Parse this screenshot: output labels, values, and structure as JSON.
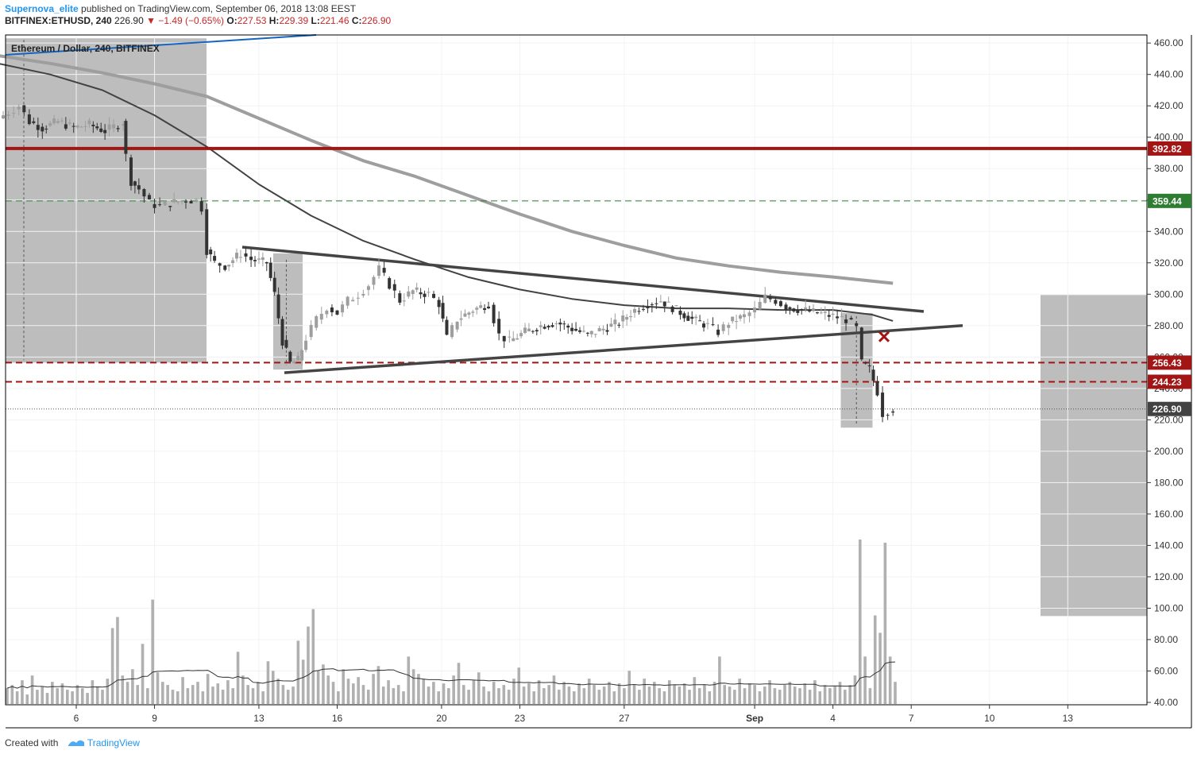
{
  "header": {
    "username": "Supernova_elite",
    "published_text": "published on TradingView.com, September 06, 2018 13:08 EEST",
    "symbol": "BITFINEX:ETHUSD, 240",
    "last": "226.90",
    "change": "▼ −1.49 (−0.65%)",
    "o_label": "O:",
    "o_value": "227.53",
    "h_label": "H:",
    "h_value": "229.39",
    "l_label": "L:",
    "l_value": "221.46",
    "c_label": "C:",
    "c_value": "226.90"
  },
  "footer": {
    "created_with": "Created with",
    "brand": "TradingView"
  },
  "colors": {
    "down_bar": "#333333",
    "up_bar": "#9e9e9e",
    "resistance": "#a31515",
    "support_dash": "#a31515",
    "green": "#2e7d32",
    "box": "#bdbdbd"
  },
  "chart_data": {
    "type": "candlestick",
    "title": "Ethereum / Dollar, 240, BITFINEX",
    "y_ticks": [
      "460.00",
      "440.00",
      "420.00",
      "400.00",
      "380.00",
      "360.00",
      "340.00",
      "320.00",
      "300.00",
      "280.00",
      "260.00",
      "240.00",
      "220.00",
      "200.00",
      "180.00",
      "160.00",
      "140.00",
      "120.00",
      "100.00",
      "80.00",
      "60.00",
      "40.00"
    ],
    "x_ticks": [
      {
        "label": "6",
        "day": 6
      },
      {
        "label": "9",
        "day": 9
      },
      {
        "label": "13",
        "day": 13
      },
      {
        "label": "16",
        "day": 16
      },
      {
        "label": "20",
        "day": 20
      },
      {
        "label": "23",
        "day": 23
      },
      {
        "label": "27",
        "day": 27
      },
      {
        "label": "Sep",
        "day": 32,
        "bold": true
      },
      {
        "label": "4",
        "day": 35
      },
      {
        "label": "7",
        "day": 38
      },
      {
        "label": "10",
        "day": 41
      },
      {
        "label": "13",
        "day": 44
      }
    ],
    "price_labels": [
      {
        "value": 392.82,
        "text": "392.82",
        "color": "#a31515"
      },
      {
        "value": 359.44,
        "text": "359.44",
        "color": "#2e7d32"
      },
      {
        "value": 256.43,
        "text": "256.43",
        "color": "#a31515"
      },
      {
        "value": 244.23,
        "text": "244.23",
        "color": "#a31515"
      },
      {
        "value": 226.9,
        "text": "226.90",
        "color": "#424242"
      }
    ],
    "horizontal_lines": [
      {
        "value": 392.82,
        "style": "solid",
        "color": "#a31515"
      },
      {
        "value": 359.44,
        "style": "dashed",
        "color": "#2e7d32"
      },
      {
        "value": 256.43,
        "style": "dashed",
        "color": "#a31515"
      },
      {
        "value": 244.23,
        "style": "dashed",
        "color": "#a31515"
      },
      {
        "value": 226.9,
        "style": "dotted",
        "color": "#555555"
      }
    ],
    "price_path": [
      [
        3.0,
        412
      ],
      [
        3.4,
        416
      ],
      [
        3.8,
        420
      ],
      [
        4.2,
        410
      ],
      [
        4.7,
        406
      ],
      [
        5.3,
        410
      ],
      [
        5.9,
        406
      ],
      [
        6.5,
        408
      ],
      [
        7.1,
        404
      ],
      [
        7.6,
        408
      ],
      [
        7.8,
        410
      ],
      [
        7.9,
        388
      ],
      [
        8.1,
        372
      ],
      [
        8.4,
        367
      ],
      [
        8.8,
        358
      ],
      [
        9.2,
        356
      ],
      [
        9.6,
        358
      ],
      [
        10.2,
        360
      ],
      [
        10.6,
        360
      ],
      [
        10.8,
        355
      ],
      [
        11.0,
        328
      ],
      [
        11.3,
        320
      ],
      [
        11.7,
        318
      ],
      [
        12.0,
        322
      ],
      [
        12.3,
        326
      ],
      [
        12.7,
        322
      ],
      [
        13.3,
        320
      ],
      [
        13.6,
        300
      ],
      [
        13.9,
        270
      ],
      [
        14.2,
        256
      ],
      [
        14.5,
        258
      ],
      [
        14.8,
        272
      ],
      [
        15.2,
        284
      ],
      [
        15.6,
        292
      ],
      [
        16.0,
        288
      ],
      [
        16.4,
        296
      ],
      [
        16.8,
        300
      ],
      [
        17.2,
        306
      ],
      [
        17.6,
        316
      ],
      [
        18.0,
        306
      ],
      [
        18.4,
        296
      ],
      [
        18.9,
        302
      ],
      [
        19.5,
        300
      ],
      [
        19.9,
        294
      ],
      [
        20.2,
        272
      ],
      [
        20.6,
        284
      ],
      [
        21.2,
        290
      ],
      [
        21.8,
        294
      ],
      [
        22.2,
        274
      ],
      [
        22.6,
        270
      ],
      [
        23.2,
        276
      ],
      [
        23.8,
        280
      ],
      [
        24.4,
        282
      ],
      [
        25.0,
        278
      ],
      [
        25.6,
        274
      ],
      [
        26.2,
        278
      ],
      [
        26.8,
        282
      ],
      [
        27.4,
        290
      ],
      [
        27.9,
        294
      ],
      [
        28.4,
        296
      ],
      [
        29.0,
        290
      ],
      [
        29.6,
        284
      ],
      [
        30.2,
        280
      ],
      [
        30.6,
        276
      ],
      [
        31.0,
        282
      ],
      [
        31.6,
        286
      ],
      [
        32.0,
        290
      ],
      [
        32.4,
        298
      ],
      [
        32.8,
        296
      ],
      [
        33.2,
        292
      ],
      [
        33.8,
        290
      ],
      [
        34.4,
        288
      ],
      [
        35.0,
        286
      ],
      [
        35.5,
        284
      ],
      [
        35.9,
        278
      ],
      [
        36.1,
        256
      ],
      [
        36.4,
        252
      ],
      [
        36.7,
        238
      ],
      [
        36.9,
        224
      ],
      [
        37.1,
        226
      ],
      [
        37.3,
        226.9
      ]
    ],
    "volume": [
      10,
      12,
      8,
      15,
      6,
      18,
      9,
      11,
      7,
      14,
      10,
      13,
      9,
      8,
      12,
      10,
      7,
      15,
      11,
      9,
      16,
      48,
      55,
      18,
      14,
      22,
      12,
      38,
      10,
      66,
      20,
      14,
      12,
      9,
      8,
      17,
      10,
      12,
      14,
      8,
      19,
      11,
      13,
      9,
      15,
      10,
      33,
      18,
      12,
      10,
      14,
      8,
      27,
      21,
      16,
      12,
      9,
      11,
      40,
      28,
      49,
      60,
      21,
      25,
      18,
      14,
      8,
      22,
      16,
      13,
      17,
      12,
      9,
      19,
      24,
      11,
      15,
      10,
      12,
      8,
      30,
      22,
      19,
      16,
      11,
      14,
      8,
      13,
      10,
      18,
      26,
      12,
      9,
      15,
      20,
      11,
      8,
      14,
      10,
      12,
      9,
      16,
      23,
      11,
      13,
      8,
      15,
      10,
      12,
      18,
      9,
      14,
      11,
      8,
      13,
      10,
      16,
      12,
      9,
      11,
      14,
      8,
      13,
      10,
      21,
      12,
      9,
      16,
      11,
      14,
      10,
      8,
      15,
      12,
      11,
      13,
      9,
      17,
      10,
      12,
      8,
      14,
      30,
      12,
      11,
      9,
      16,
      10,
      13,
      12,
      8,
      11,
      15,
      10,
      9,
      12,
      14,
      11,
      10,
      13,
      9,
      15,
      8,
      12,
      10,
      11,
      14,
      9,
      12,
      18,
      104,
      30,
      10,
      56,
      45,
      102,
      30,
      14
    ]
  }
}
